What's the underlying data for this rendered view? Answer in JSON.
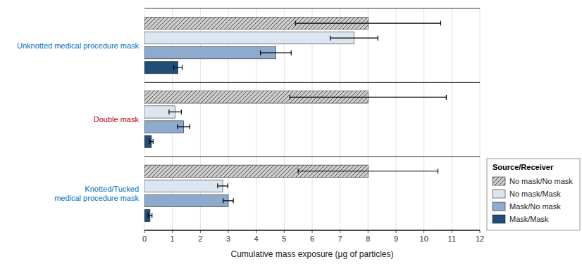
{
  "chart_data": {
    "type": "bar",
    "orientation": "horizontal",
    "categories": [
      "Unknotted medical procedure mask",
      "Double mask",
      "Knotted/Tucked\nmedical procedure mask"
    ],
    "series": [
      {
        "name": "No mask/No mask",
        "color": "#cccccc",
        "values": [
          8.0,
          8.0,
          8.0
        ],
        "error": [
          2.6,
          2.8,
          2.5
        ]
      },
      {
        "name": "No mask/Mask",
        "color": "#dce6f1",
        "values": [
          7.5,
          1.1,
          2.8
        ],
        "error": [
          0.85,
          0.22,
          0.18
        ]
      },
      {
        "name": "Mask/No mask",
        "color": "#8eaacd",
        "values": [
          4.7,
          1.4,
          3.0
        ],
        "error": [
          0.55,
          0.22,
          0.18
        ]
      },
      {
        "name": "Mask/Mask",
        "color": "#1f4e79",
        "values": [
          1.2,
          0.25,
          0.2
        ],
        "error": [
          0.15,
          0.06,
          0.07
        ]
      }
    ],
    "xlabel": "Cumulative mass exposure (μg of particles)",
    "xlim": [
      0,
      12
    ],
    "xticks": [
      0,
      1,
      2,
      3,
      4,
      5,
      6,
      7,
      8,
      9,
      10,
      11,
      12
    ],
    "grid": true,
    "legend": "lower right",
    "legend_title": "Source/Receiver"
  }
}
